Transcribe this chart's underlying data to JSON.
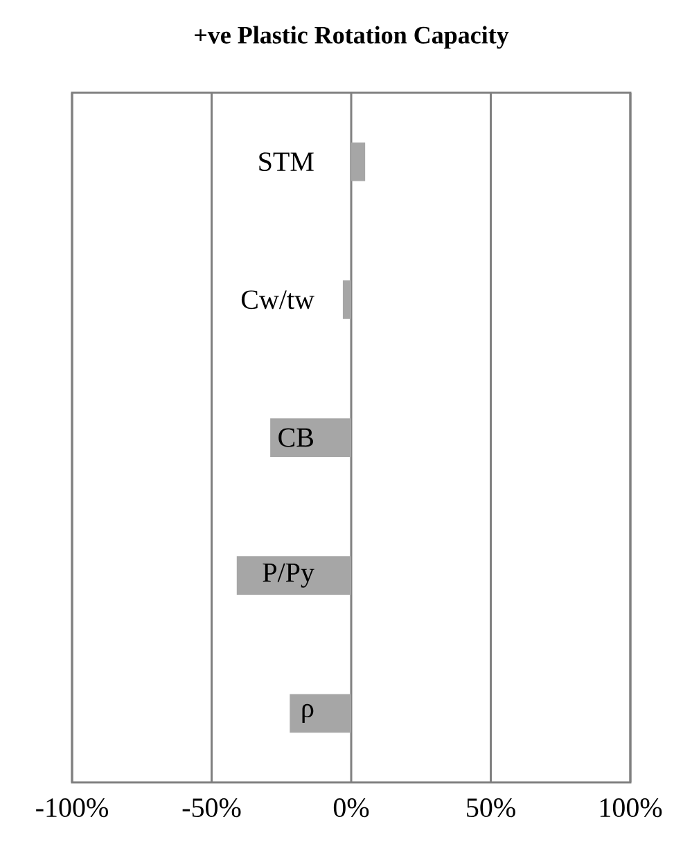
{
  "chart_data": {
    "type": "bar",
    "orientation": "horizontal",
    "title": "+ve Plastic Rotation Capacity",
    "categories": [
      "STM",
      "Cw/tw",
      "CB",
      "P/Py",
      "ρ"
    ],
    "values": [
      5,
      -3,
      -29,
      -41,
      -22
    ],
    "color": "#a6a6a6",
    "xlim": [
      -100,
      100
    ],
    "xticks": [
      {
        "value": -100,
        "label": "-100%"
      },
      {
        "value": -50,
        "label": "-50%"
      },
      {
        "value": 0,
        "label": "0%"
      },
      {
        "value": 50,
        "label": "50%"
      },
      {
        "value": 100,
        "label": "100%"
      }
    ],
    "grid": true
  }
}
